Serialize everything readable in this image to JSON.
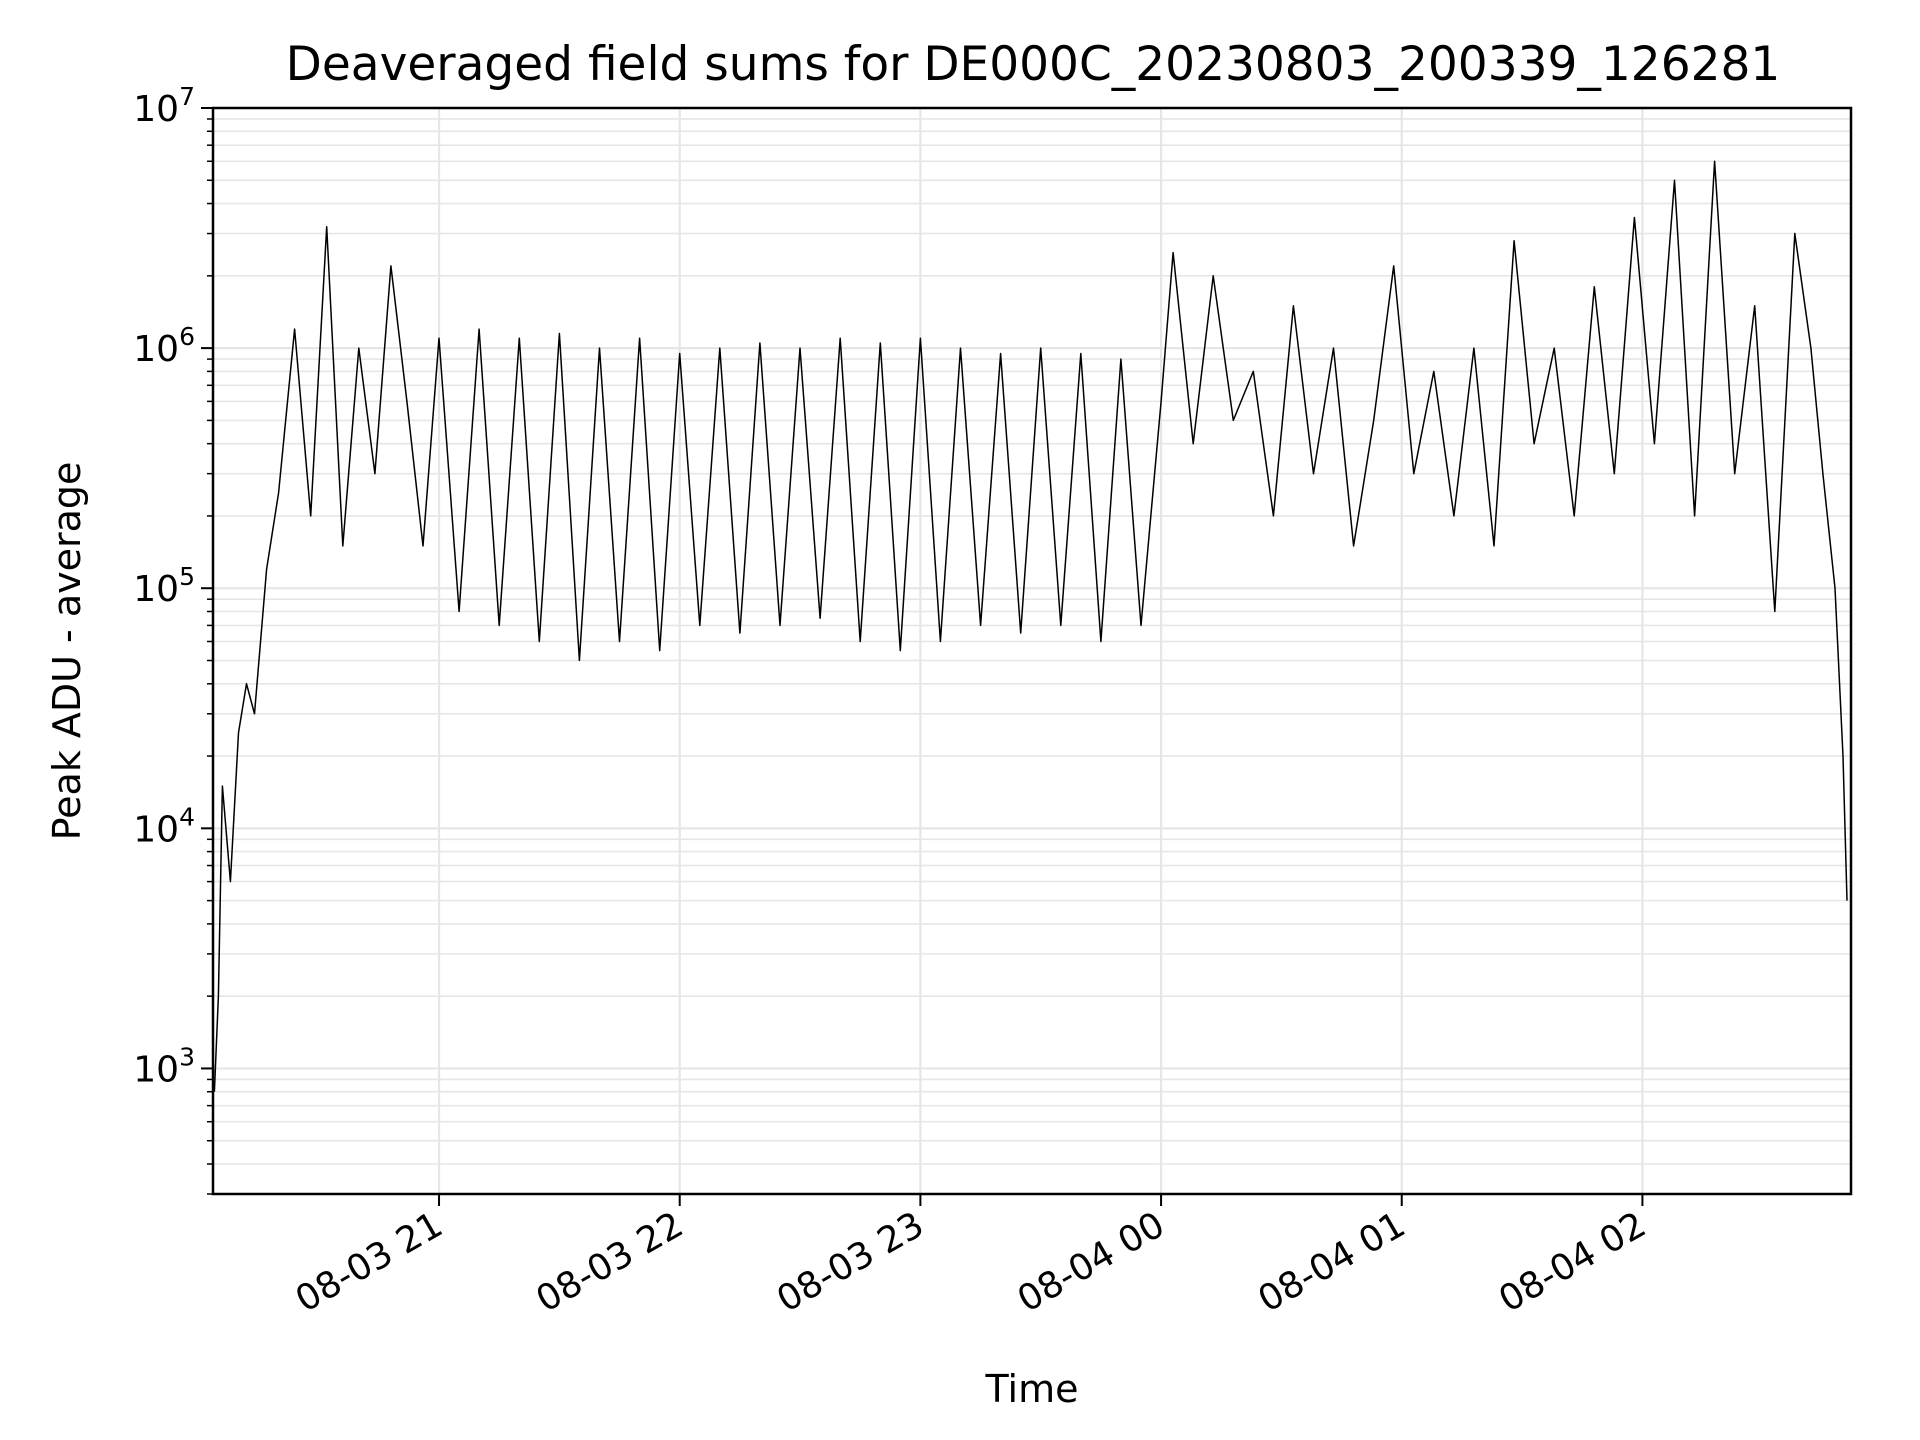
{
  "chart_data": {
    "type": "line",
    "title": "Deaveraged field sums for DE000C_20230803_200339_126281",
    "xlabel": "Time",
    "ylabel": "Peak ADU - average",
    "yscale": "log",
    "ylim": [
      300,
      10000000
    ],
    "xlim": [
      "2023-08-03 20:03:39",
      "2023-08-04 02:52:00"
    ],
    "grid": true,
    "line_color": "#000000",
    "grid_color": "#e6e6e6",
    "x_ticks": [
      {
        "value": "2023-08-03 21:00",
        "label": "08-03 21"
      },
      {
        "value": "2023-08-03 22:00",
        "label": "08-03 22"
      },
      {
        "value": "2023-08-03 23:00",
        "label": "08-03 23"
      },
      {
        "value": "2023-08-04 00:00",
        "label": "08-04 00"
      },
      {
        "value": "2023-08-04 01:00",
        "label": "08-04 01"
      },
      {
        "value": "2023-08-04 02:00",
        "label": "08-04 02"
      }
    ],
    "y_ticks": [
      {
        "value": 1000,
        "base": "10",
        "exp": "3"
      },
      {
        "value": 10000,
        "base": "10",
        "exp": "4"
      },
      {
        "value": 100000,
        "base": "10",
        "exp": "5"
      },
      {
        "value": 1000000,
        "base": "10",
        "exp": "6"
      },
      {
        "value": 10000000,
        "base": "10",
        "exp": "7"
      }
    ],
    "series": [
      {
        "x": [
          "2023-08-03 20:04",
          "2023-08-03 20:05",
          "2023-08-03 20:06",
          "2023-08-03 20:08",
          "2023-08-03 20:10",
          "2023-08-03 20:12",
          "2023-08-03 20:14",
          "2023-08-03 20:17",
          "2023-08-03 20:20",
          "2023-08-03 20:24",
          "2023-08-03 20:28",
          "2023-08-03 20:32",
          "2023-08-03 20:36",
          "2023-08-03 20:40",
          "2023-08-03 20:44",
          "2023-08-03 20:48",
          "2023-08-03 20:52",
          "2023-08-03 20:56",
          "2023-08-03 21:00",
          "2023-08-03 21:05",
          "2023-08-03 21:10",
          "2023-08-03 21:15",
          "2023-08-03 21:20",
          "2023-08-03 21:25",
          "2023-08-03 21:30",
          "2023-08-03 21:35",
          "2023-08-03 21:40",
          "2023-08-03 21:45",
          "2023-08-03 21:50",
          "2023-08-03 21:55",
          "2023-08-03 22:00",
          "2023-08-03 22:05",
          "2023-08-03 22:10",
          "2023-08-03 22:15",
          "2023-08-03 22:20",
          "2023-08-03 22:25",
          "2023-08-03 22:30",
          "2023-08-03 22:35",
          "2023-08-03 22:40",
          "2023-08-03 22:45",
          "2023-08-03 22:50",
          "2023-08-03 22:55",
          "2023-08-03 23:00",
          "2023-08-03 23:05",
          "2023-08-03 23:10",
          "2023-08-03 23:15",
          "2023-08-03 23:20",
          "2023-08-03 23:25",
          "2023-08-03 23:30",
          "2023-08-03 23:35",
          "2023-08-03 23:40",
          "2023-08-03 23:45",
          "2023-08-03 23:50",
          "2023-08-03 23:55",
          "2023-08-04 00:00",
          "2023-08-04 00:03",
          "2023-08-04 00:08",
          "2023-08-04 00:13",
          "2023-08-04 00:18",
          "2023-08-04 00:23",
          "2023-08-04 00:28",
          "2023-08-04 00:33",
          "2023-08-04 00:38",
          "2023-08-04 00:43",
          "2023-08-04 00:48",
          "2023-08-04 00:53",
          "2023-08-04 00:58",
          "2023-08-04 01:03",
          "2023-08-04 01:08",
          "2023-08-04 01:13",
          "2023-08-04 01:18",
          "2023-08-04 01:23",
          "2023-08-04 01:28",
          "2023-08-04 01:33",
          "2023-08-04 01:38",
          "2023-08-04 01:43",
          "2023-08-04 01:48",
          "2023-08-04 01:53",
          "2023-08-04 01:58",
          "2023-08-04 02:03",
          "2023-08-04 02:08",
          "2023-08-04 02:13",
          "2023-08-04 02:18",
          "2023-08-04 02:23",
          "2023-08-04 02:28",
          "2023-08-04 02:33",
          "2023-08-04 02:38",
          "2023-08-04 02:42",
          "2023-08-04 02:45",
          "2023-08-04 02:48",
          "2023-08-04 02:50",
          "2023-08-04 02:51"
        ],
        "y": [
          800,
          2000,
          15000,
          6000,
          25000,
          40000,
          30000,
          120000,
          250000,
          1200000,
          200000,
          3200000,
          150000,
          1000000,
          300000,
          2200000,
          600000,
          150000,
          1100000,
          80000,
          1200000,
          70000,
          1100000,
          60000,
          1150000,
          50000,
          1000000,
          60000,
          1100000,
          55000,
          950000,
          70000,
          1000000,
          65000,
          1050000,
          70000,
          1000000,
          75000,
          1100000,
          60000,
          1050000,
          55000,
          1100000,
          60000,
          1000000,
          70000,
          950000,
          65000,
          1000000,
          70000,
          950000,
          60000,
          900000,
          70000,
          600000,
          2500000,
          400000,
          2000000,
          500000,
          800000,
          200000,
          1500000,
          300000,
          1000000,
          150000,
          500000,
          2200000,
          300000,
          800000,
          200000,
          1000000,
          150000,
          2800000,
          400000,
          1000000,
          200000,
          1800000,
          300000,
          3500000,
          400000,
          5000000,
          200000,
          6000000,
          300000,
          1500000,
          80000,
          3000000,
          1000000,
          300000,
          100000,
          20000,
          5000
        ]
      }
    ]
  }
}
